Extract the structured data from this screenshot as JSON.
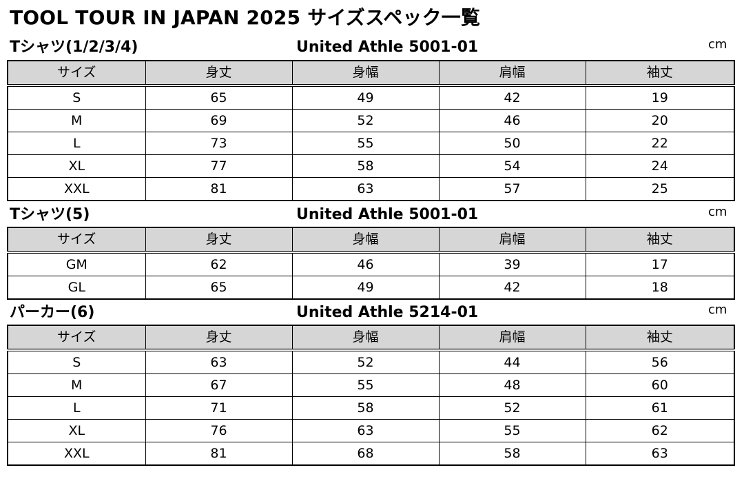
{
  "title": "TOOL TOUR IN JAPAN 2025 サイズスペック一覧",
  "columns": [
    "サイズ",
    "身丈",
    "身幅",
    "肩幅",
    "袖丈"
  ],
  "sections": [
    {
      "name": "Tシャツ(1/2/3/4)",
      "model": "United Athle 5001-01",
      "unit": "cm",
      "rows": [
        [
          "S",
          "65",
          "49",
          "42",
          "19"
        ],
        [
          "M",
          "69",
          "52",
          "46",
          "20"
        ],
        [
          "L",
          "73",
          "55",
          "50",
          "22"
        ],
        [
          "XL",
          "77",
          "58",
          "54",
          "24"
        ],
        [
          "XXL",
          "81",
          "63",
          "57",
          "25"
        ]
      ]
    },
    {
      "name": "Tシャツ(5)",
      "model": "United Athle 5001-01",
      "unit": "cm",
      "rows": [
        [
          "GM",
          "62",
          "46",
          "39",
          "17"
        ],
        [
          "GL",
          "65",
          "49",
          "42",
          "18"
        ]
      ]
    },
    {
      "name": "パーカー(6)",
      "model": "United Athle 5214-01",
      "unit": "cm",
      "rows": [
        [
          "S",
          "63",
          "52",
          "44",
          "56"
        ],
        [
          "M",
          "67",
          "55",
          "48",
          "60"
        ],
        [
          "L",
          "71",
          "58",
          "52",
          "61"
        ],
        [
          "XL",
          "76",
          "63",
          "55",
          "62"
        ],
        [
          "XXL",
          "81",
          "68",
          "58",
          "63"
        ]
      ]
    }
  ]
}
